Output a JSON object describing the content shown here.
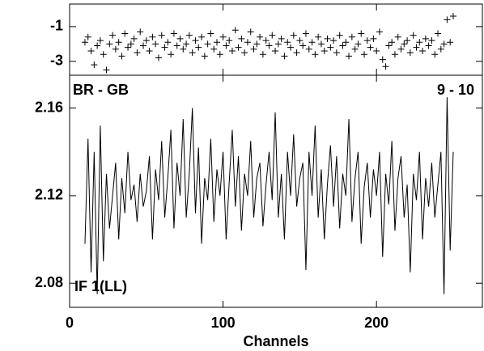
{
  "chart_data": [
    {
      "type": "scatter",
      "marker": "+",
      "color": "#000000",
      "x": [
        10,
        12,
        14,
        16,
        18,
        20,
        22,
        24,
        26,
        28,
        30,
        32,
        34,
        36,
        38,
        40,
        42,
        44,
        46,
        48,
        50,
        52,
        54,
        56,
        58,
        60,
        62,
        64,
        66,
        68,
        70,
        72,
        74,
        76,
        78,
        80,
        82,
        84,
        86,
        88,
        90,
        92,
        94,
        96,
        98,
        100,
        102,
        104,
        106,
        108,
        110,
        112,
        114,
        116,
        118,
        120,
        122,
        124,
        126,
        128,
        130,
        132,
        134,
        136,
        138,
        140,
        142,
        144,
        146,
        148,
        150,
        152,
        154,
        156,
        158,
        160,
        162,
        164,
        166,
        168,
        170,
        172,
        174,
        176,
        178,
        180,
        182,
        184,
        186,
        188,
        190,
        192,
        194,
        196,
        198,
        200,
        202,
        204,
        206,
        208,
        210,
        212,
        214,
        216,
        218,
        220,
        222,
        224,
        226,
        228,
        230,
        232,
        234,
        236,
        238,
        240,
        242,
        244,
        246,
        248,
        250
      ],
      "values": [
        -1.9,
        -1.6,
        -2.4,
        -3.2,
        -2.1,
        -1.8,
        -2.6,
        -3.5,
        -2.0,
        -1.5,
        -2.3,
        -1.9,
        -2.7,
        -1.4,
        -2.2,
        -2.0,
        -1.7,
        -2.5,
        -1.3,
        -2.1,
        -1.8,
        -2.4,
        -1.6,
        -2.0,
        -2.8,
        -1.5,
        -2.2,
        -1.9,
        -2.6,
        -1.4,
        -2.1,
        -1.7,
        -2.3,
        -2.0,
        -1.5,
        -2.5,
        -1.8,
        -2.2,
        -1.6,
        -2.7,
        -2.0,
        -1.4,
        -2.3,
        -1.9,
        -2.6,
        -1.6,
        -2.1,
        -1.8,
        -2.4,
        -1.2,
        -2.2,
        -1.7,
        -2.5,
        -1.9,
        -1.3,
        -2.3,
        -2.0,
        -1.6,
        -2.6,
        -1.8,
        -2.1,
        -1.5,
        -2.4,
        -2.0,
        -1.7,
        -2.7,
        -1.9,
        -2.2,
        -1.5,
        -2.5,
        -1.8,
        -2.1,
        -1.4,
        -2.3,
        -1.9,
        -2.6,
        -1.6,
        -2.0,
        -2.4,
        -1.7,
        -2.2,
        -1.8,
        -2.5,
        -1.5,
        -2.1,
        -1.9,
        -2.7,
        -1.6,
        -2.3,
        -2.0,
        -1.4,
        -2.6,
        -1.8,
        -2.2,
        -1.7,
        -2.4,
        -1.3,
        -2.9,
        -3.3,
        -2.1,
        -1.9,
        -2.6,
        -1.6,
        -2.3,
        -2.0,
        -1.8,
        -2.5,
        -1.5,
        -2.2,
        -1.9,
        -2.4,
        -1.7,
        -2.1,
        -1.8,
        -2.6,
        -1.4,
        -2.3,
        -2.0,
        -0.6,
        -1.9,
        -0.4
      ],
      "xlim": [
        0,
        269
      ],
      "ylim": [
        -3.8,
        0.3
      ],
      "yticks": [
        -1,
        -3
      ]
    },
    {
      "type": "line",
      "color": "#000000",
      "xlabel": "Channels",
      "annotations": [
        "BR - GB",
        "9 - 10",
        "IF 1(LL)"
      ],
      "x": [
        10,
        12,
        14,
        16,
        18,
        20,
        22,
        24,
        26,
        28,
        30,
        32,
        34,
        36,
        38,
        40,
        42,
        44,
        46,
        48,
        50,
        52,
        54,
        56,
        58,
        60,
        62,
        64,
        66,
        68,
        70,
        72,
        74,
        76,
        78,
        80,
        82,
        84,
        86,
        88,
        90,
        92,
        94,
        96,
        98,
        100,
        102,
        104,
        106,
        108,
        110,
        112,
        114,
        116,
        118,
        120,
        122,
        124,
        126,
        128,
        130,
        132,
        134,
        136,
        138,
        140,
        142,
        144,
        146,
        148,
        150,
        152,
        154,
        156,
        158,
        160,
        162,
        164,
        166,
        168,
        170,
        172,
        174,
        176,
        178,
        180,
        182,
        184,
        186,
        188,
        190,
        192,
        194,
        196,
        198,
        200,
        202,
        204,
        206,
        208,
        210,
        212,
        214,
        216,
        218,
        220,
        222,
        224,
        226,
        228,
        230,
        232,
        234,
        236,
        238,
        240,
        242,
        244,
        246,
        248,
        250
      ],
      "values": [
        2.098,
        2.146,
        2.085,
        2.14,
        2.075,
        2.152,
        2.09,
        2.13,
        2.105,
        2.12,
        2.135,
        2.1,
        2.128,
        2.112,
        2.14,
        2.118,
        2.125,
        2.108,
        2.13,
        2.115,
        2.122,
        2.138,
        2.1,
        2.132,
        2.118,
        2.145,
        2.11,
        2.128,
        2.15,
        2.105,
        2.135,
        2.12,
        2.155,
        2.11,
        2.13,
        2.16,
        2.112,
        2.142,
        2.098,
        2.128,
        2.118,
        2.146,
        2.108,
        2.132,
        2.12,
        2.14,
        2.1,
        2.126,
        2.15,
        2.115,
        2.138,
        2.104,
        2.13,
        2.12,
        2.145,
        2.11,
        2.128,
        2.135,
        2.106,
        2.125,
        2.14,
        2.118,
        2.158,
        2.11,
        2.13,
        2.1,
        2.14,
        2.12,
        2.148,
        2.115,
        2.128,
        2.135,
        2.086,
        2.14,
        2.12,
        2.152,
        2.11,
        2.132,
        2.1,
        2.125,
        2.143,
        2.115,
        2.138,
        2.105,
        2.13,
        2.12,
        2.155,
        2.108,
        2.128,
        2.14,
        2.098,
        2.124,
        2.135,
        2.11,
        2.132,
        2.12,
        2.14,
        2.092,
        2.13,
        2.116,
        2.145,
        2.104,
        2.128,
        2.138,
        2.11,
        2.125,
        2.085,
        2.13,
        2.118,
        2.14,
        2.1,
        2.128,
        2.115,
        2.135,
        2.11,
        2.125,
        2.14,
        2.075,
        2.165,
        2.095,
        2.14
      ],
      "xlim": [
        0,
        269
      ],
      "ylim": [
        2.069,
        2.175
      ],
      "yticks": [
        2.16,
        2.12,
        2.08
      ],
      "xticks": [
        0,
        100,
        200
      ]
    }
  ]
}
